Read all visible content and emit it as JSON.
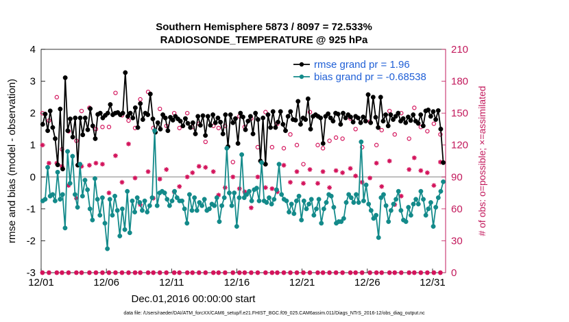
{
  "chart_data": {
    "type": "line",
    "title": "Southern Hemisphere 5873 / 8097 = 72.533%",
    "subtitle": "RADIOSONDE_TEMPERATURE @ 925 hPa",
    "xlabel": "Dec.01,2016 00:00:00 start",
    "ylabel": "rmse and bias (model - observation)",
    "y2label": "# of obs: o=possible; ×=assimilated",
    "footnote": "data file: /Users/raeder/DAI/ATM_forcXX/CAM6_setup/f.e21.FHIST_BGC.f09_025.CAM6assim.011/Diags_NTrS_2016-12/obs_diag_output.nc",
    "x_ticks": [
      "12/01",
      "12/06",
      "12/11",
      "12/16",
      "12/21",
      "12/26",
      "12/31"
    ],
    "x_tick_days": [
      1,
      6,
      11,
      16,
      21,
      26,
      31
    ],
    "xlim": [
      1,
      32
    ],
    "ylim": [
      -3,
      4
    ],
    "y_ticks": [
      "-3",
      "-2",
      "-1",
      "0",
      "1",
      "2",
      "3",
      "4"
    ],
    "y2lim": [
      0,
      210
    ],
    "y2_ticks": [
      "0",
      "30",
      "60",
      "90",
      "120",
      "150",
      "180",
      "210"
    ],
    "grid": false,
    "zero_line": true,
    "legend_position": "top-right",
    "colors": {
      "rmse": "#000000",
      "bias": "#138a8a",
      "obs": "#d3135b",
      "right_axis": "#c2185b",
      "legend_text": "#1f5fd6",
      "zero_line": "#aaaaaa"
    },
    "series": [
      {
        "name": "rmse grand pr = 1.96",
        "axis": "left",
        "values": [
          1.65,
          1.97,
          1.45,
          2.07,
          1.55,
          1.2,
          0.38,
          2.13,
          0.25,
          3.11,
          1.45,
          1.82,
          1.25,
          1.85,
          0.37,
          1.85,
          1.32,
          1.85,
          1.48,
          2.14,
          1.6,
          1.2,
          1.96,
          2.0,
          1.85,
          1.93,
          2.0,
          2.27,
          1.95,
          2.0,
          2.02,
          1.95,
          2.0,
          3.27,
          1.9,
          2.0,
          1.85,
          2.17,
          1.55,
          2.3,
          1.8,
          2.0,
          1.95,
          2.6,
          1.82,
          1.4,
          1.7,
          1.5,
          1.95,
          1.85,
          1.45,
          1.87,
          1.78,
          1.9,
          1.82,
          1.75,
          1.6,
          1.83,
          1.68,
          1.55,
          1.7,
          1.35,
          1.9,
          1.62,
          1.92,
          1.3,
          1.9,
          1.62,
          1.95,
          1.7,
          1.85,
          1.72,
          1.35,
          1.95,
          0.95,
          1.95,
          1.7,
          1.83,
          1.05,
          2.0,
          1.88,
          1.48,
          1.75,
          1.9,
          1.35,
          2.0,
          1.8,
          0.5,
          1.85,
          0.4,
          1.95,
          1.55,
          2.05,
          1.55,
          1.72,
          2.05,
          1.65,
          1.45,
          1.9,
          2.05,
          1.8,
          1.78,
          2.37,
          1.65,
          1.85,
          1.8,
          2.45,
          1.5,
          1.9,
          1.95,
          1.9,
          1.85,
          1.05,
          1.9,
          1.98,
          1.85,
          1.75,
          2.0,
          1.97,
          1.65,
          2.0,
          1.85,
          1.95,
          1.88,
          1.72,
          1.9,
          1.85,
          1.7,
          1.88,
          1.75,
          2.58,
          1.7,
          2.5,
          1.87,
          1.55,
          2.5,
          1.75,
          1.95,
          1.6,
          1.95,
          1.8,
          1.9,
          2.0,
          1.75,
          1.83,
          1.7,
          1.88,
          1.77,
          1.95,
          1.75,
          1.68,
          1.95,
          1.6,
          2.07,
          2.1,
          1.9,
          2.05,
          1.8,
          2.08,
          1.5,
          0.45
        ]
      },
      {
        "name": "bias grand pr = -0.68538",
        "axis": "left",
        "values": [
          -0.75,
          -0.7,
          0.3,
          -0.6,
          -0.55,
          -0.75,
          0.15,
          -0.7,
          -0.55,
          -1.6,
          0.8,
          -0.2,
          0.65,
          -0.55,
          -0.95,
          0.4,
          -0.6,
          -0.1,
          -0.4,
          -1.0,
          -1.35,
          -0.05,
          -0.7,
          -1.2,
          -0.65,
          -1.45,
          -2.25,
          -0.7,
          -1.2,
          -0.6,
          -1.05,
          -1.85,
          -1.0,
          -1.65,
          -0.45,
          -1.75,
          -0.75,
          -1.1,
          -0.65,
          -0.8,
          -1.05,
          -0.75,
          -1.1,
          -0.9,
          -0.65,
          1.45,
          -0.9,
          -0.5,
          -0.45,
          -0.5,
          -0.7,
          -0.9,
          -0.75,
          -0.45,
          -0.65,
          -0.75,
          -0.75,
          -1.0,
          -1.45,
          -0.55,
          -1.05,
          -0.65,
          -1.05,
          -0.8,
          -0.9,
          -0.7,
          -1.05,
          -1.0,
          -0.85,
          -0.9,
          -0.65,
          -1.4,
          -0.9,
          -0.65,
          0.9,
          -0.5,
          -0.9,
          -0.5,
          -1.55,
          -0.65,
          0.7,
          -0.65,
          -0.55,
          -0.45,
          -0.75,
          -0.4,
          -0.35,
          -0.75,
          0.45,
          -0.75,
          -0.8,
          -0.65,
          -0.85,
          -0.7,
          -0.4,
          0.4,
          -0.55,
          -0.7,
          -0.75,
          -1.1,
          -0.85,
          -1.15,
          -0.75,
          -0.6,
          -1.35,
          -0.75,
          -1.0,
          -0.85,
          -0.7,
          -1.2,
          -1.0,
          -0.7,
          -1.45,
          -1.0,
          -0.8,
          -0.55,
          -0.6,
          -0.95,
          -1.45,
          -1.4,
          -1.4,
          -1.3,
          -0.8,
          -0.55,
          -0.65,
          -0.8,
          -0.55,
          -0.8,
          1.1,
          -0.75,
          -0.25,
          -0.85,
          -1.05,
          -1.3,
          -1.2,
          -1.9,
          -0.65,
          -0.55,
          -0.9,
          -1.4,
          -1.05,
          -0.85,
          -0.7,
          -0.45,
          -1.05,
          -1.35,
          -1.4,
          -0.95,
          -1.2,
          -0.85,
          -0.7,
          -0.85,
          -0.45,
          -0.7,
          -1.2,
          -1.0,
          -0.8,
          -1.55,
          -0.95,
          -0.65,
          -0.45,
          -0.15
        ]
      },
      {
        "name": "possible (o)",
        "axis": "right",
        "marker": "o",
        "x": [
          1.1,
          1.6,
          2.2,
          2.6,
          3.1,
          3.7,
          4.1,
          4.7,
          5.2,
          5.7,
          6.2,
          6.7,
          7.2,
          7.7,
          8.2,
          8.6,
          9.2,
          9.6,
          10.1,
          10.6,
          11.2,
          11.6,
          12.2,
          12.6,
          13.1,
          13.6,
          14.2,
          14.6,
          15.1,
          15.7,
          16.2,
          16.6,
          17.1,
          17.6,
          18.2,
          18.7,
          19.1,
          19.6,
          20.1,
          20.6,
          21.1,
          21.6,
          22.2,
          22.6,
          23.1,
          23.6,
          24.1,
          24.7,
          25.1,
          25.6,
          26.2,
          26.7,
          27.1,
          27.7,
          28.1,
          28.6,
          29.2,
          29.6,
          30.1,
          30.6,
          31.1,
          31.6
        ],
        "values": [
          150,
          143,
          165,
          116,
          133,
          124,
          152,
          155,
          135,
          137,
          137,
          169,
          148,
          143,
          136,
          163,
          170,
          136,
          154,
          138,
          150,
          136,
          150,
          137,
          140,
          123,
          138,
          136,
          138,
          104,
          147,
          137,
          145,
          118,
          151,
          118,
          140,
          117,
          130,
          120,
          102,
          151,
          120,
          117,
          124,
          127,
          126,
          145,
          135,
          118,
          142,
          120,
          134,
          152,
          130,
          150,
          126,
          155,
          137,
          133,
          140,
          130
        ]
      },
      {
        "name": "assimilated (×)",
        "axis": "right",
        "marker": "×",
        "values": [
          0,
          0,
          0,
          0,
          0,
          0,
          0,
          0,
          0,
          0,
          0,
          0,
          0,
          0,
          0,
          0,
          0,
          0,
          0,
          0,
          0,
          0,
          0,
          0,
          0,
          0,
          0,
          0,
          0,
          0,
          0,
          0,
          0,
          0,
          0,
          0,
          0,
          0,
          0,
          0,
          0,
          0,
          0,
          0,
          0,
          0,
          0,
          0,
          0,
          0,
          0,
          0,
          0,
          0,
          0,
          0,
          0,
          0,
          0,
          0,
          0,
          0
        ],
        "points": [
          [
            1.1,
            120
          ],
          [
            1.6,
            103
          ],
          [
            2.2,
            103
          ],
          [
            2.6,
            100
          ],
          [
            3.1,
            82
          ],
          [
            3.7,
            70
          ],
          [
            4.1,
            100
          ],
          [
            4.7,
            101
          ],
          [
            5.2,
            103
          ],
          [
            5.7,
            102
          ],
          [
            6.2,
            75
          ],
          [
            6.7,
            110
          ],
          [
            7.2,
            85
          ],
          [
            7.7,
            121
          ],
          [
            8.2,
            89
          ],
          [
            8.6,
            64
          ],
          [
            9.2,
            95
          ],
          [
            9.6,
            70
          ],
          [
            10.1,
            88
          ],
          [
            10.6,
            97
          ],
          [
            11.2,
            76
          ],
          [
            11.6,
            81
          ],
          [
            12.2,
            90
          ],
          [
            12.6,
            94
          ],
          [
            13.1,
            100
          ],
          [
            13.6,
            99
          ],
          [
            14.2,
            95
          ],
          [
            14.6,
            73
          ],
          [
            15.1,
            80
          ],
          [
            15.7,
            90
          ],
          [
            16.2,
            79
          ],
          [
            16.6,
            76
          ],
          [
            17.1,
            61
          ],
          [
            17.6,
            90
          ],
          [
            18.2,
            80
          ],
          [
            18.7,
            79
          ],
          [
            19.1,
            76
          ],
          [
            19.6,
            101
          ],
          [
            20.1,
            85
          ],
          [
            20.6,
            95
          ],
          [
            21.1,
            84
          ],
          [
            21.6,
            97
          ],
          [
            22.2,
            84
          ],
          [
            22.6,
            95
          ],
          [
            23.1,
            80
          ],
          [
            23.6,
            96
          ],
          [
            24.1,
            94
          ],
          [
            24.7,
            98
          ],
          [
            25.1,
            91
          ],
          [
            25.6,
            85
          ],
          [
            26.2,
            89
          ],
          [
            26.7,
            103
          ],
          [
            27.1,
            81
          ],
          [
            27.7,
            105
          ],
          [
            28.1,
            64
          ],
          [
            28.6,
            72
          ],
          [
            29.2,
            97
          ],
          [
            29.6,
            108
          ],
          [
            30.1,
            96
          ],
          [
            30.6,
            94
          ],
          [
            31.1,
            82
          ],
          [
            31.6,
            104
          ]
        ]
      }
    ]
  }
}
